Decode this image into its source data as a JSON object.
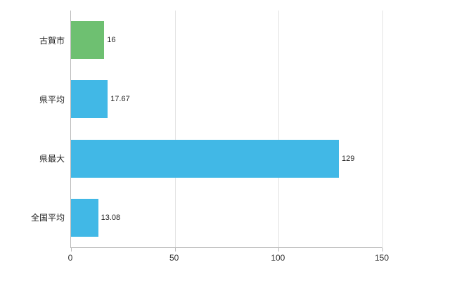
{
  "chart_data": {
    "type": "bar",
    "orientation": "horizontal",
    "title": "",
    "xlabel": "",
    "ylabel": "",
    "categories": [
      "古賀市",
      "県平均",
      "県最大",
      "全国平均"
    ],
    "values": [
      16,
      17.67,
      129,
      13.08
    ],
    "value_labels": [
      "16",
      "17.67",
      "129",
      "13.08"
    ],
    "bar_colors": [
      "#6ec071",
      "#41b8e6",
      "#41b8e6",
      "#41b8e6"
    ],
    "xlim": [
      0,
      150
    ],
    "x_ticks": [
      0,
      50,
      100,
      150
    ],
    "grid": true,
    "legend": "none"
  },
  "colors": {
    "grid": "#e3e3e3",
    "axis": "#b9b9b9",
    "text": "#222222"
  }
}
